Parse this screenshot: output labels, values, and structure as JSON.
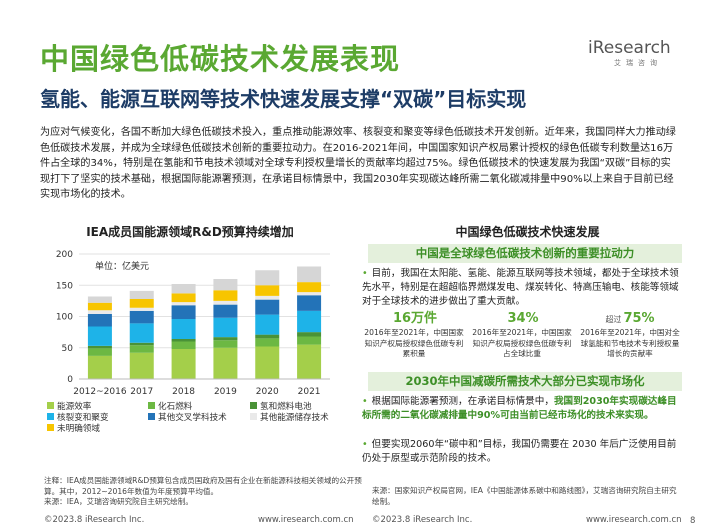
{
  "header": {
    "title": "中国绿色低碳技术发展表现",
    "subtitle": "氢能、能源互联网等技术快速发展支撑“双碳”目标实现",
    "logo_text": "iResearch",
    "logo_cn": "艾瑞咨询"
  },
  "intro": "为应对气候变化，各国不断加大绿色低碳技术投入，重点推动能源效率、核裂变和聚变等绿色低碳技术开发创新。近年来，我国同样大力推动绿色低碳技术发展，并成为全球绿色低碳技术创新的重要拉动力。在2016-2021年间，中国国家知识产权局累计授权的绿色低碳专利数量达16万件占全球的34%，特别是在氢能和节电技术领域对全球专利授权量增长的贡献率均超过75%。绿色低碳技术的快速发展为我国“双碳”目标的实现打下了坚实的技术基础，根据国际能源署预测，在承诺目标情景中，我国2030年实现碳达峰所需二氧化碳减排量中90%以上来自于目前已经实现市场化的技术。",
  "chart_data": {
    "type": "bar",
    "stacked": true,
    "title": "IEA成员国能源领域R&D预算持续增加",
    "unit_label": "单位：亿美元",
    "categories": [
      "2012~2016",
      "2017",
      "2018",
      "2019",
      "2020",
      "2021"
    ],
    "ylim": [
      0,
      200
    ],
    "yticks": [
      0,
      50,
      100,
      150,
      200
    ],
    "grid": true,
    "legend_position": "bottom",
    "series": [
      {
        "name": "能源效率",
        "color": "#a4cf4a",
        "values": [
          37,
          42,
          48,
          50,
          52,
          55
        ]
      },
      {
        "name": "化石燃料",
        "color": "#6cb843",
        "values": [
          12,
          12,
          12,
          12,
          13,
          13
        ]
      },
      {
        "name": "氢和燃料电池",
        "color": "#4a9237",
        "values": [
          4,
          4,
          4,
          5,
          6,
          7
        ]
      },
      {
        "name": "核裂变和聚变",
        "color": "#1eb3e8",
        "values": [
          31,
          31,
          32,
          31,
          32,
          34
        ]
      },
      {
        "name": "其他交叉学科技术",
        "color": "#2373b8",
        "values": [
          20,
          20,
          22,
          21,
          24,
          25
        ]
      },
      {
        "name": "其他能源储存技术",
        "color": "#e9e9e9",
        "values": [
          6,
          5,
          5,
          6,
          6,
          5
        ]
      },
      {
        "name": "未明确领域",
        "color": "#f7c500",
        "values": [
          12,
          14,
          14,
          17,
          17,
          16
        ]
      },
      {
        "name": "",
        "color": "#d6d6d6",
        "values": [
          10,
          13,
          15,
          18,
          24,
          25
        ]
      }
    ]
  },
  "notes": [
    "注释：IEA成员国能源领域R&D预算包含成员国政府及国有企业在新能源科技相关领域的公开预算。其中，2012~2016年数值为年度预算平均值。",
    "来源：IEA，艾瑞咨询研究院自主研究绘制。"
  ],
  "footer": {
    "copyright_left": "©2023.8 iResearch Inc.",
    "url_left": "www.iresearch.com.cn",
    "copyright_right": "©2023.8 iResearch Inc.",
    "url_right": "www.iresearch.com.cn",
    "page": "8"
  },
  "right": {
    "title": "中国绿色低碳技术快速发展",
    "bar1": "中国是全球绿色低碳技术创新的重要拉动力",
    "bullet1": "目前，我国在太阳能、氢能、能源互联网等技术领域，都处于全球技术领先水平，特别是在超超临界燃煤发电、煤炭转化、特高压输电、核能等领域对于全球技术的进步做出了重大贡献。",
    "stats": [
      {
        "prefix": "",
        "value": "16万件",
        "caption": "2016年至2021年，中国国家知识产权局授权绿色低碳专利累积量"
      },
      {
        "prefix": "",
        "value": "34%",
        "caption": "2016年至2021年，中国国家知识产权局授权绿色低碳专利占全球比重"
      },
      {
        "prefix": "超过",
        "value": "75%",
        "caption": "2016年至2021年，中国对全球氢能和节电技术专利授权量增长的贡献率"
      }
    ],
    "bar2": "2030年中国减碳所需技术大部分已实现市场化",
    "bullet2_pre": "根据国际能源署预测，在承诺目标情景中，",
    "bullet2_hl": "我国到2030年实现碳达峰目标所需的二氧化碳减排量中90%可由当前已经市场化的技术来实现。",
    "bullet3": "但要实现2060年“碳中和”目标，我国仍需要在 2030 年后广泛使用目前仍处于原型或示范阶段的技术。",
    "source": "来源：国家知识产权局官网，IEA《中国能源体系碳中和路线图》，艾瑞咨询研究院自主研究绘制。"
  }
}
